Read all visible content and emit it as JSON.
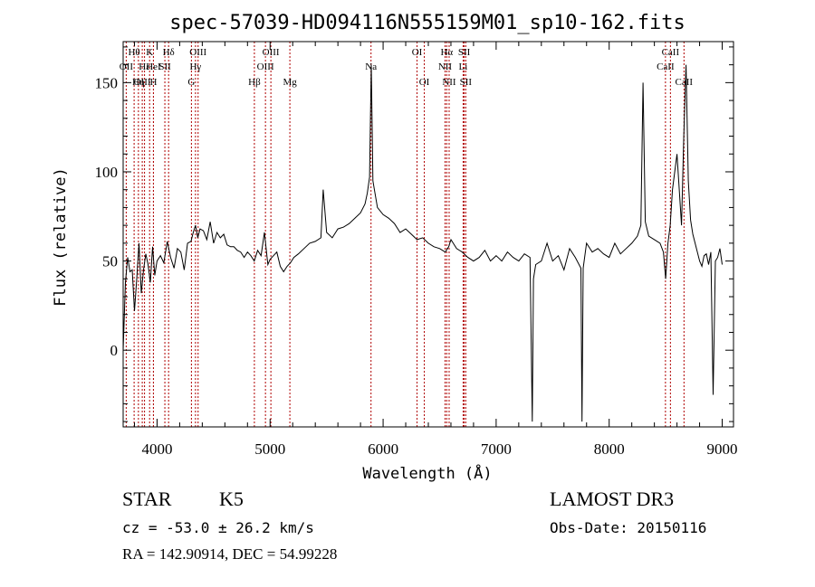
{
  "chart_data": {
    "type": "line",
    "title": "spec-57039-HD094116N555159M01_sp10-162.fits",
    "xlabel": "Wavelength (Å)",
    "ylabel": "Flux (relative)",
    "xlim": [
      3700,
      9100
    ],
    "ylim": [
      -43,
      173
    ],
    "xticks": [
      4000,
      5000,
      6000,
      7000,
      8000,
      9000
    ],
    "yticks": [
      0,
      50,
      100,
      150
    ],
    "xtick_labels": [
      "4000",
      "5000",
      "6000",
      "7000",
      "8000",
      "9000"
    ],
    "ytick_labels": [
      "0",
      "50",
      "100",
      "150"
    ],
    "grid": false,
    "spectrum": {
      "x": [
        3700,
        3720,
        3740,
        3760,
        3780,
        3800,
        3820,
        3840,
        3860,
        3880,
        3900,
        3920,
        3940,
        3960,
        3980,
        4000,
        4030,
        4060,
        4090,
        4120,
        4150,
        4180,
        4210,
        4240,
        4270,
        4300,
        4320,
        4340,
        4360,
        4380,
        4410,
        4440,
        4470,
        4500,
        4530,
        4560,
        4590,
        4620,
        4650,
        4680,
        4710,
        4740,
        4770,
        4800,
        4830,
        4860,
        4890,
        4920,
        4950,
        4980,
        5000,
        5030,
        5060,
        5090,
        5120,
        5150,
        5180,
        5210,
        5250,
        5300,
        5350,
        5400,
        5450,
        5470,
        5500,
        5550,
        5600,
        5650,
        5700,
        5750,
        5800,
        5840,
        5860,
        5880,
        5895,
        5910,
        5920,
        5950,
        6000,
        6050,
        6100,
        6150,
        6200,
        6250,
        6300,
        6350,
        6400,
        6450,
        6500,
        6550,
        6580,
        6600,
        6650,
        6700,
        6750,
        6800,
        6850,
        6900,
        6950,
        7000,
        7050,
        7100,
        7150,
        7200,
        7250,
        7300,
        7320,
        7330,
        7350,
        7400,
        7450,
        7500,
        7550,
        7600,
        7650,
        7700,
        7750,
        7760,
        7770,
        7800,
        7850,
        7900,
        7950,
        8000,
        8050,
        8100,
        8150,
        8200,
        8250,
        8280,
        8300,
        8320,
        8350,
        8400,
        8450,
        8480,
        8500,
        8520,
        8540,
        8560,
        8600,
        8640,
        8660,
        8680,
        8700,
        8720,
        8740,
        8760,
        8780,
        8800,
        8820,
        8840,
        8860,
        8880,
        8900,
        8920,
        8940,
        8960,
        8980,
        9000
      ],
      "y": [
        0,
        38,
        52,
        44,
        45,
        22,
        40,
        60,
        32,
        45,
        54,
        48,
        38,
        58,
        42,
        50,
        53,
        49,
        61,
        52,
        46,
        57,
        55,
        45,
        60,
        61,
        66,
        70,
        63,
        68,
        67,
        62,
        72,
        60,
        66,
        63,
        65,
        59,
        58,
        58,
        56,
        55,
        52,
        55,
        53,
        50,
        56,
        53,
        66,
        48,
        51,
        53,
        55,
        47,
        44,
        47,
        49,
        52,
        54,
        57,
        60,
        61,
        63,
        90,
        66,
        63,
        68,
        69,
        71,
        74,
        77,
        82,
        88,
        97,
        160,
        95,
        91,
        80,
        76,
        74,
        71,
        66,
        68,
        65,
        62,
        63,
        60,
        58,
        57,
        55,
        58,
        62,
        57,
        55,
        52,
        50,
        52,
        56,
        50,
        53,
        50,
        55,
        52,
        50,
        54,
        52,
        -40,
        40,
        48,
        50,
        60,
        50,
        53,
        45,
        57,
        52,
        46,
        -40,
        46,
        60,
        55,
        57,
        54,
        52,
        60,
        54,
        57,
        60,
        64,
        70,
        150,
        72,
        64,
        62,
        60,
        55,
        40,
        60,
        70,
        90,
        110,
        70,
        120,
        160,
        95,
        73,
        65,
        60,
        55,
        50,
        47,
        53,
        54,
        48,
        55,
        -25,
        50,
        52,
        57,
        48
      ]
    },
    "lines": [
      {
        "label": "Hθ",
        "x": 3797,
        "row": 0
      },
      {
        "label": "OII",
        "x": 3727,
        "row": 1
      },
      {
        "label": "OIII",
        "x": 3869,
        "row": 2
      },
      {
        "label": "K",
        "x": 3934,
        "row": 0
      },
      {
        "label": "Hε",
        "x": 3889,
        "row": 1
      },
      {
        "label": "Hη",
        "x": 3835,
        "row": 2
      },
      {
        "label": "Hδ",
        "x": 4102,
        "row": 0
      },
      {
        "label": "HeI",
        "x": 3968,
        "row": 1
      },
      {
        "label": "H",
        "x": 3968,
        "row": 2
      },
      {
        "label": "SII",
        "x": 4069,
        "row": 1
      },
      {
        "label": "OIII",
        "x": 4363,
        "row": 0
      },
      {
        "label": "Hγ",
        "x": 4340,
        "row": 1
      },
      {
        "label": "G",
        "x": 4304,
        "row": 2
      },
      {
        "label": "OIII",
        "x": 5007,
        "row": 0
      },
      {
        "label": "OIII",
        "x": 4959,
        "row": 1
      },
      {
        "label": "Hβ",
        "x": 4861,
        "row": 2
      },
      {
        "label": "Mg",
        "x": 5175,
        "row": 2
      },
      {
        "label": "Na",
        "x": 5893,
        "row": 1
      },
      {
        "label": "OI",
        "x": 6300,
        "row": 0
      },
      {
        "label": "OI",
        "x": 6364,
        "row": 2
      },
      {
        "label": "Hα",
        "x": 6563,
        "row": 0
      },
      {
        "label": "SII",
        "x": 6717,
        "row": 0
      },
      {
        "label": "NII",
        "x": 6548,
        "row": 1
      },
      {
        "label": "Li",
        "x": 6708,
        "row": 1
      },
      {
        "label": "NII",
        "x": 6584,
        "row": 2
      },
      {
        "label": "SII",
        "x": 6731,
        "row": 2
      },
      {
        "label": "CaII",
        "x": 8542,
        "row": 0
      },
      {
        "label": "CaII",
        "x": 8498,
        "row": 1
      },
      {
        "label": "CaII",
        "x": 8662,
        "row": 2
      }
    ],
    "line_marker_color": "#b00000",
    "spectrum_color": "#000000"
  },
  "info": {
    "class": "STAR",
    "subclass": "K5",
    "redshift": "cz = -53.0 ± 26.2 km/s",
    "coords": "RA = 142.90914, DEC =  54.99228",
    "survey": "LAMOST DR3",
    "obs_date": "Obs-Date: 20150116"
  }
}
